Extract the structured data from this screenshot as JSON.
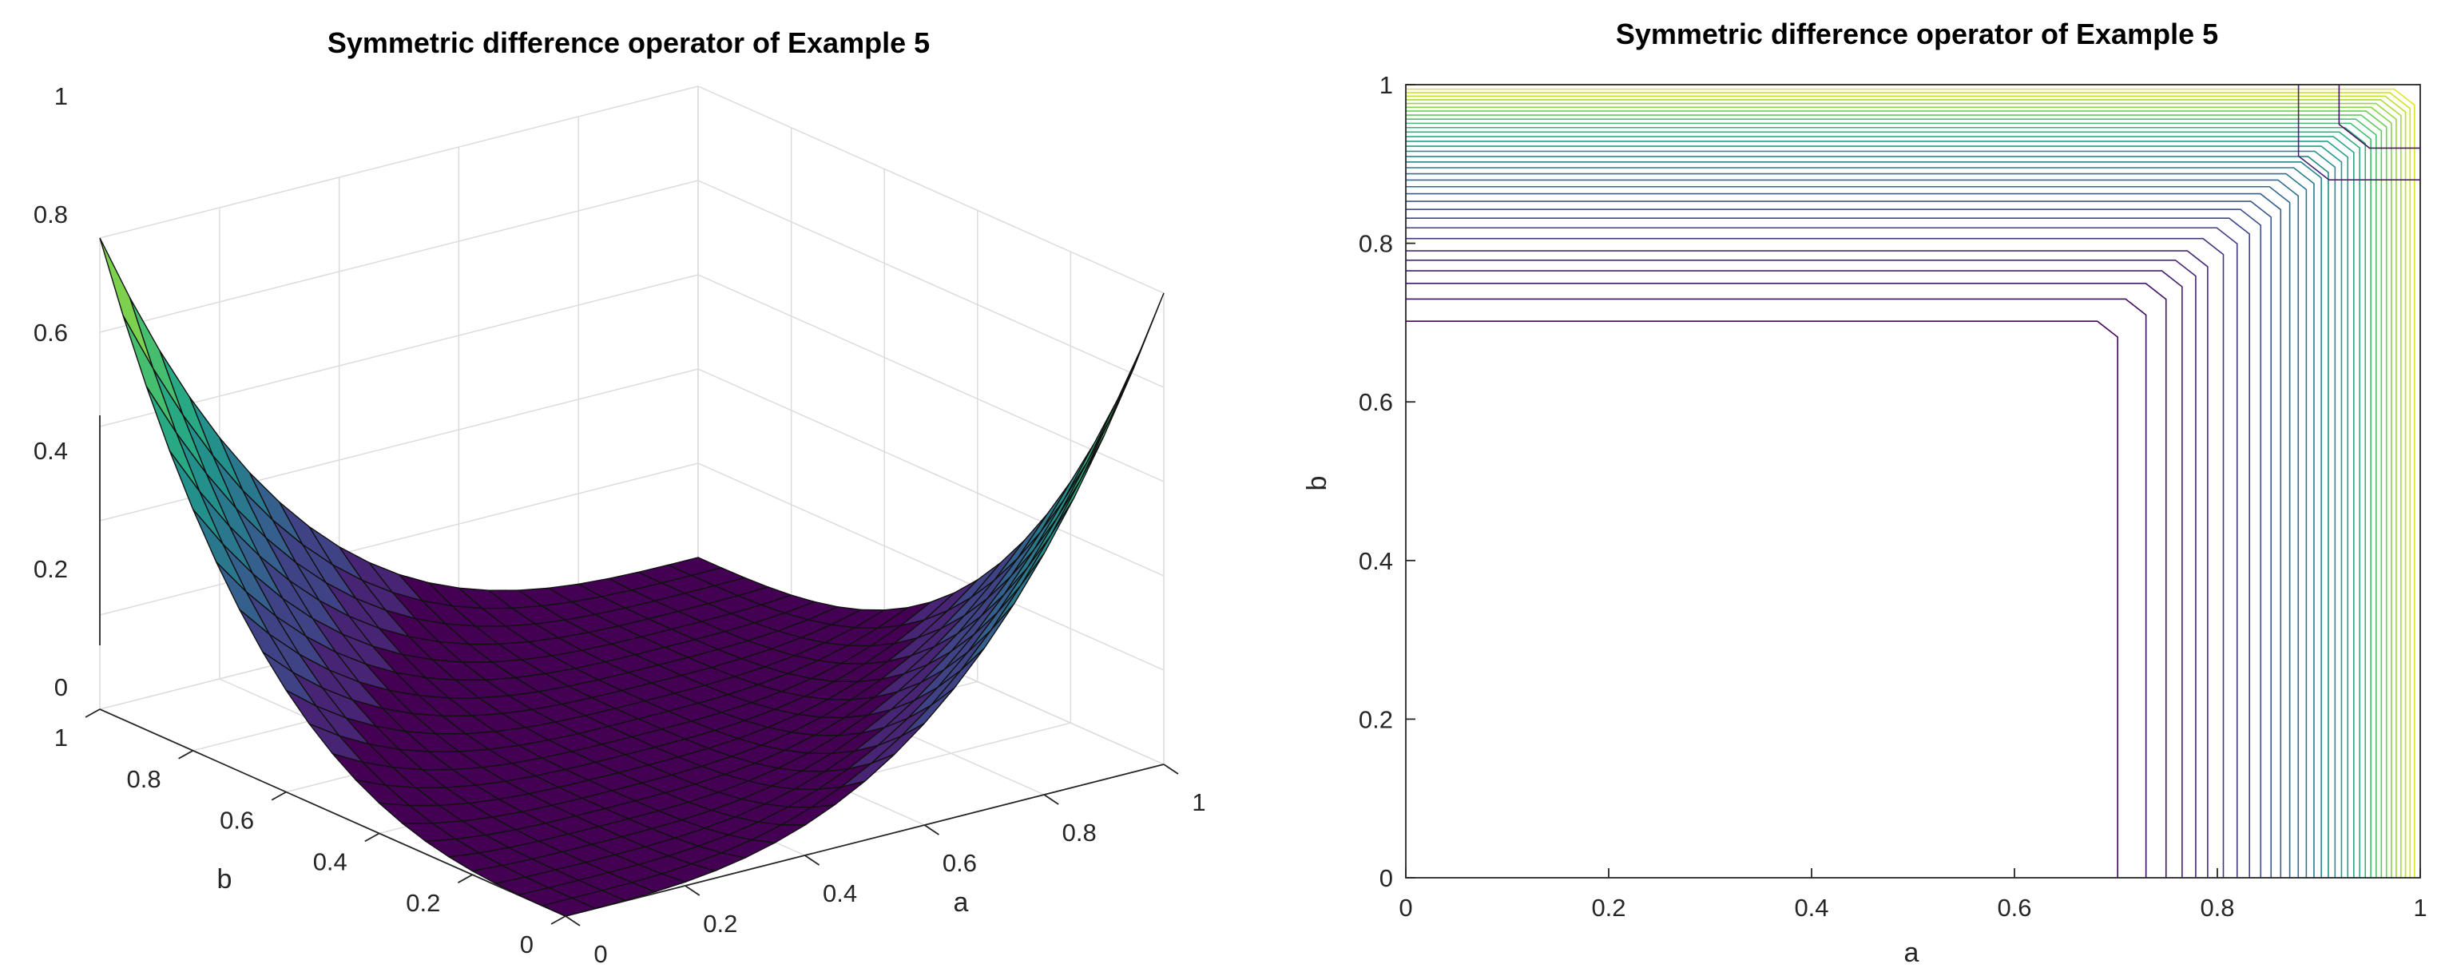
{
  "chart_data": [
    {
      "type": "surface",
      "title": "Symmetric difference operator of Example 5",
      "xlabel": "a",
      "ylabel": "b",
      "zlabel": "",
      "xlim": [
        0,
        1
      ],
      "ylim": [
        0,
        1
      ],
      "zlim": [
        0,
        1
      ],
      "x_ticks": [
        "0",
        "0.2",
        "0.4",
        "0.6",
        "0.8",
        "1"
      ],
      "y_ticks": [
        "0",
        "0.2",
        "0.4",
        "0.6",
        "0.8",
        "1"
      ],
      "z_ticks": [
        "0",
        "0.2",
        "0.4",
        "0.6",
        "0.8",
        "1"
      ],
      "grid": true,
      "colormap": [
        "#440154",
        "#482878",
        "#3e4989",
        "#31688e",
        "#26828e",
        "#1f9e89",
        "#35b779",
        "#6ece58",
        "#b5de2b",
        "#fde725"
      ],
      "grid_size": 21
    },
    {
      "type": "contour",
      "title": "Symmetric difference operator of Example 5",
      "xlabel": "a",
      "ylabel": "b",
      "xlim": [
        0,
        1
      ],
      "ylim": [
        0,
        1
      ],
      "x_ticks": [
        "0",
        "0.2",
        "0.4",
        "0.6",
        "0.8",
        "1"
      ],
      "y_ticks": [
        "0",
        "0.2",
        "0.4",
        "0.6",
        "0.8",
        "1"
      ],
      "grid": false,
      "levels": [
        0.02,
        0.04,
        0.06,
        0.08,
        0.1,
        0.12,
        0.15,
        0.18,
        0.21,
        0.24,
        0.27,
        0.3,
        0.33,
        0.36,
        0.39,
        0.42,
        0.45,
        0.48,
        0.51,
        0.54,
        0.57,
        0.6,
        0.63,
        0.66,
        0.69,
        0.72,
        0.75,
        0.78,
        0.81,
        0.84,
        0.87,
        0.9,
        0.93,
        0.96
      ]
    }
  ]
}
